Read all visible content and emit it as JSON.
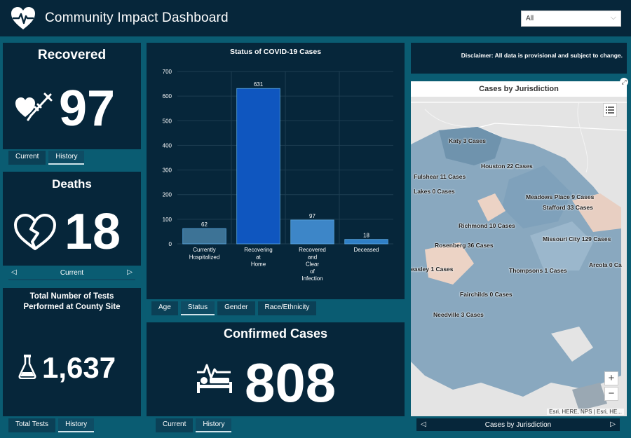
{
  "header": {
    "title": "Community Impact Dashboard",
    "filter_value": "All"
  },
  "recovered": {
    "title": "Recovered",
    "value": "97",
    "tabs": [
      "Current",
      "History"
    ]
  },
  "deaths": {
    "title": "Deaths",
    "value": "18",
    "nav_label": "Current",
    "prev": "◁",
    "next": "▷"
  },
  "tests": {
    "title_line1": "Total Number of Tests",
    "title_line2": "Performed at County Site",
    "value": "1,637",
    "tabs": [
      "Total Tests",
      "History"
    ]
  },
  "status_chart": {
    "tabs": [
      "Age",
      "Status",
      "Gender",
      "Race/Ethnicity"
    ]
  },
  "chart_data": {
    "type": "bar",
    "title": "Status of COVID-19 Cases",
    "categories": [
      [
        "Currently",
        "Hospitalized"
      ],
      [
        "Recovering",
        "at",
        "Home"
      ],
      [
        "Recovered",
        "and",
        "Clear",
        "of",
        "Infection"
      ],
      [
        "Deceased"
      ]
    ],
    "values": [
      62,
      631,
      97,
      18
    ],
    "ylim": [
      0,
      700
    ],
    "yticks": [
      0,
      100,
      200,
      300,
      400,
      500,
      600,
      700
    ],
    "colors": [
      "#3d7396",
      "#0f56bf",
      "#3d86c8",
      "#2f7fc6"
    ],
    "grid": true
  },
  "confirmed": {
    "title": "Confirmed Cases",
    "value": "808",
    "tabs": [
      "Current",
      "History"
    ]
  },
  "disclaimer": "Disclaimer: All data is provisional and subject to change.",
  "map": {
    "title": "Cases by Jurisdiction",
    "labels": [
      "Katy 3 Cases",
      "Houston 22 Cases",
      "Fulshear 11 Cases",
      "Lakes 0 Cases",
      "Meadows Place 9 Cases",
      "Stafford 33 Cases",
      "Richmond 10 Cases",
      "Missouri City 129 Cases",
      "Rosenberg 36 Cases",
      "easley 1 Cases",
      "Thompsons 1 Cases",
      "Arcola 0 Ca",
      "Fairchilds 0 Cases",
      "Needville 3 Cases"
    ],
    "attribution": "Esri, HERE, NPS | Esri, HE...",
    "zoom_in": "+",
    "zoom_out": "−",
    "nav_label": "Cases by Jurisdiction",
    "prev": "◁",
    "next": "▷"
  }
}
